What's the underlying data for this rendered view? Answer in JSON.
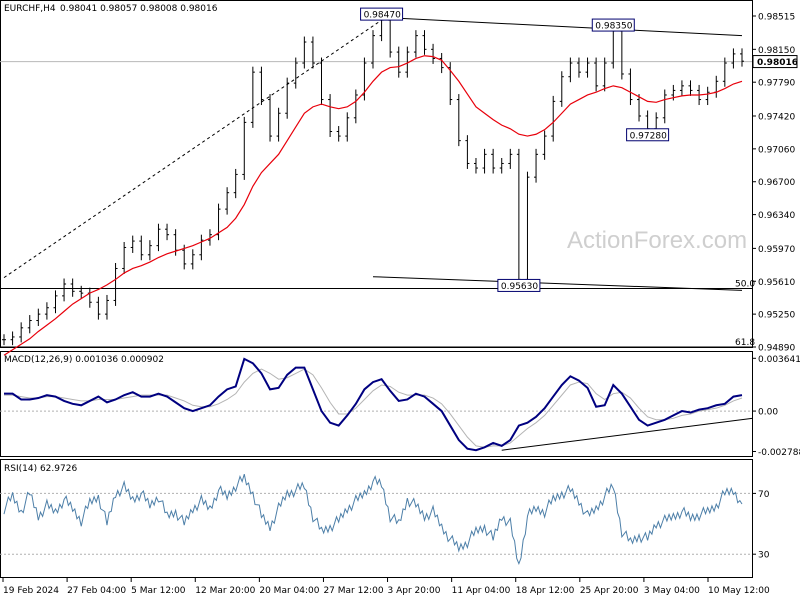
{
  "chart_data": [
    {
      "type": "candlestick",
      "symbol_label": "EURCHF,H4",
      "ohlc_label": "0.98041 0.98057 0.98008 0.98016",
      "ylim": [
        0.9489,
        0.98515
      ],
      "y_ticks": [
        "0.98515",
        "0.98150",
        "0.97790",
        "0.97420",
        "0.97060",
        "0.96700",
        "0.96340",
        "0.95970",
        "0.95610",
        "0.95250",
        "0.94890"
      ],
      "last_price": "0.98016",
      "price_series": [
        0.9497,
        0.95,
        0.951,
        0.9518,
        0.9525,
        0.9532,
        0.9545,
        0.9558,
        0.955,
        0.9548,
        0.9538,
        0.9525,
        0.954,
        0.9575,
        0.9598,
        0.9605,
        0.959,
        0.96,
        0.9618,
        0.9612,
        0.9595,
        0.958,
        0.959,
        0.9606,
        0.9612,
        0.964,
        0.9658,
        0.9678,
        0.9735,
        0.979,
        0.976,
        0.972,
        0.9745,
        0.9778,
        0.98,
        0.9823,
        0.98,
        0.976,
        0.9725,
        0.972,
        0.974,
        0.9765,
        0.98,
        0.983,
        0.9847,
        0.9812,
        0.979,
        0.9812,
        0.983,
        0.9815,
        0.9805,
        0.9795,
        0.976,
        0.9715,
        0.969,
        0.9685,
        0.97,
        0.9685,
        0.969,
        0.97,
        0.9563,
        0.9675,
        0.97,
        0.972,
        0.9758,
        0.9785,
        0.98,
        0.979,
        0.98,
        0.9775,
        0.98,
        0.9835,
        0.9788,
        0.976,
        0.9742,
        0.9728,
        0.974,
        0.9765,
        0.977,
        0.9775,
        0.977,
        0.976,
        0.9768,
        0.978,
        0.98,
        0.981,
        0.9802
      ],
      "moving_average": [
        0.948,
        0.9486,
        0.9492,
        0.9498,
        0.9506,
        0.9513,
        0.952,
        0.9528,
        0.9536,
        0.9542,
        0.9548,
        0.9552,
        0.9557,
        0.9563,
        0.957,
        0.9575,
        0.9578,
        0.9582,
        0.9587,
        0.9591,
        0.9594,
        0.9597,
        0.96,
        0.9604,
        0.9608,
        0.9614,
        0.962,
        0.963,
        0.9645,
        0.9665,
        0.968,
        0.969,
        0.97,
        0.9715,
        0.973,
        0.9745,
        0.9752,
        0.9755,
        0.9752,
        0.975,
        0.9752,
        0.9758,
        0.9768,
        0.978,
        0.979,
        0.9795,
        0.9796,
        0.98,
        0.9805,
        0.9808,
        0.9807,
        0.9803,
        0.9792,
        0.978,
        0.9766,
        0.9752,
        0.9745,
        0.9738,
        0.9732,
        0.9728,
        0.9722,
        0.972,
        0.9722,
        0.9727,
        0.9735,
        0.9745,
        0.9755,
        0.976,
        0.9765,
        0.9768,
        0.9772,
        0.9775,
        0.9773,
        0.9768,
        0.9763,
        0.9758,
        0.9757,
        0.976,
        0.9762,
        0.9764,
        0.9765,
        0.9765,
        0.9766,
        0.9768,
        0.9772,
        0.9777,
        0.978
      ],
      "annotations": [
        {
          "label": "0.98470",
          "value": 0.9847,
          "index": 44
        },
        {
          "label": "0.98350",
          "value": 0.9835,
          "index": 71
        },
        {
          "label": "0.97280",
          "value": 0.9728,
          "index": 75
        },
        {
          "label": "0.95630",
          "value": 0.9563,
          "index": 60
        }
      ],
      "levels": [
        {
          "label": "50.0",
          "value": 0.9553
        },
        {
          "label": "61.8",
          "value": 0.9489
        }
      ],
      "trendlines": [
        {
          "style": "dashed",
          "from": [
            0,
            0.9565
          ],
          "to": [
            44,
            0.9847
          ]
        },
        {
          "style": "solid",
          "from": [
            44,
            0.985
          ],
          "to": [
            86,
            0.983
          ]
        },
        {
          "style": "solid",
          "from": [
            43,
            0.9566
          ],
          "to": [
            86,
            0.9551
          ]
        }
      ],
      "horizontal_line": 0.98016,
      "watermark": "ActionForex.com",
      "colors": {
        "price": "#000000",
        "moving_average": "#e8000b",
        "box_border": "#00006e"
      }
    },
    {
      "type": "line",
      "title": "MACD(12,26,9) 0.001036 0.000902",
      "ylim": [
        -0.0031,
        0.0038
      ],
      "y_ticks": [
        "0.003641",
        "0.00",
        "-0.002788"
      ],
      "macd": [
        0.0012,
        0.0012,
        0.0008,
        0.0008,
        0.0009,
        0.0011,
        0.001,
        0.0007,
        0.0005,
        0.0004,
        0.0007,
        0.001,
        0.0006,
        0.0008,
        0.0011,
        0.0013,
        0.001,
        0.001,
        0.0012,
        0.001,
        0.0006,
        0.0002,
        0.0,
        0.0002,
        0.0004,
        0.001,
        0.0015,
        0.0017,
        0.0036,
        0.0033,
        0.0026,
        0.0015,
        0.0016,
        0.0025,
        0.003,
        0.003,
        0.0015,
        0.0,
        -0.0008,
        -0.001,
        -0.0003,
        0.0005,
        0.0015,
        0.002,
        0.0022,
        0.0014,
        0.0007,
        0.0008,
        0.0012,
        0.001,
        0.0005,
        0.0,
        -0.001,
        -0.002,
        -0.0026,
        -0.0027,
        -0.0025,
        -0.0022,
        -0.0024,
        -0.002,
        -0.001,
        -0.0008,
        -0.0004,
        0.0002,
        0.001,
        0.0018,
        0.0024,
        0.0021,
        0.0016,
        0.0003,
        0.0004,
        0.0018,
        0.0012,
        0.0003,
        -0.0006,
        -0.001,
        -0.0008,
        -0.0006,
        -0.0003,
        0.0,
        -0.0001,
        0.0001,
        0.0002,
        0.0004,
        0.0005,
        0.001,
        0.0011
      ],
      "signal": [
        0.0011,
        0.0011,
        0.001,
        0.0009,
        0.0009,
        0.001,
        0.001,
        0.0009,
        0.0008,
        0.0007,
        0.0007,
        0.0008,
        0.0008,
        0.0008,
        0.0009,
        0.001,
        0.0011,
        0.0011,
        0.0011,
        0.0011,
        0.0009,
        0.0007,
        0.0004,
        0.0003,
        0.0003,
        0.0005,
        0.0008,
        0.0012,
        0.002,
        0.0026,
        0.0029,
        0.0026,
        0.0022,
        0.0023,
        0.0026,
        0.0029,
        0.0025,
        0.0016,
        0.0006,
        -0.0002,
        -0.0002,
        0.0002,
        0.0008,
        0.0014,
        0.0018,
        0.0017,
        0.0013,
        0.0011,
        0.0011,
        0.0011,
        0.0009,
        0.0005,
        -0.0002,
        -0.001,
        -0.0018,
        -0.0024,
        -0.0025,
        -0.0024,
        -0.0024,
        -0.0022,
        -0.0017,
        -0.0012,
        -0.0008,
        -0.0003,
        0.0004,
        0.0011,
        0.0018,
        0.002,
        0.0019,
        0.0012,
        0.0008,
        0.0012,
        0.0013,
        0.0009,
        0.0002,
        -0.0004,
        -0.0006,
        -0.0006,
        -0.0005,
        -0.0003,
        -0.0002,
        0.0,
        0.0001,
        0.0002,
        0.0004,
        0.0007,
        0.0009
      ],
      "trendline": {
        "from": [
          58,
          -0.0027
        ],
        "to": [
          86,
          -0.0005
        ]
      },
      "colors": {
        "macd": "#000080",
        "signal": "#b4b4b4"
      }
    },
    {
      "type": "line",
      "title": "RSI(14) 62.9726",
      "ylim": [
        15,
        90
      ],
      "y_ticks": [
        "70",
        "30"
      ],
      "reference_levels": [
        70,
        30
      ],
      "values": [
        60,
        68,
        58,
        70,
        55,
        62,
        58,
        66,
        60,
        52,
        64,
        68,
        50,
        70,
        74,
        66,
        70,
        62,
        68,
        55,
        58,
        50,
        60,
        65,
        60,
        72,
        68,
        75,
        80,
        70,
        55,
        48,
        60,
        70,
        72,
        75,
        55,
        45,
        48,
        52,
        60,
        65,
        70,
        78,
        76,
        55,
        50,
        66,
        62,
        55,
        58,
        48,
        40,
        34,
        38,
        45,
        48,
        40,
        55,
        50,
        22,
        55,
        60,
        58,
        66,
        70,
        72,
        65,
        55,
        60,
        68,
        75,
        45,
        38,
        42,
        40,
        50,
        52,
        55,
        58,
        54,
        56,
        58,
        62,
        70,
        72,
        63
      ],
      "color": "#4d7fa8"
    }
  ],
  "x_axis_labels": [
    "19 Feb 2024",
    "27 Feb 04:00",
    "5 Mar 12:00",
    "12 Mar 20:00",
    "20 Mar 04:00",
    "27 Mar 12:00",
    "3 Apr 20:00",
    "11 Apr 04:00",
    "18 Apr 12:00",
    "25 Apr 20:00",
    "3 May 04:00",
    "10 May 12:00"
  ]
}
